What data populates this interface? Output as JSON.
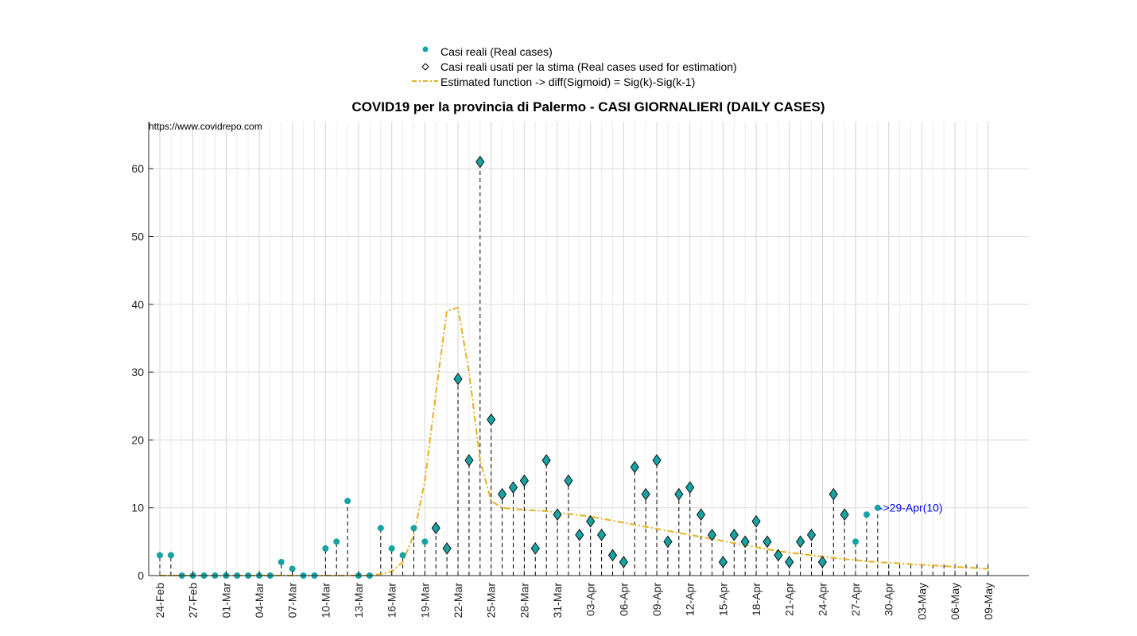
{
  "chart_data": {
    "type": "scatter",
    "title": "COVID19 per la provincia di Palermo - CASI GIORNALIERI (DAILY CASES)",
    "source_text": "https://www.covidrepo.com",
    "xlabel": "",
    "ylabel": "",
    "ylim": [
      0,
      67
    ],
    "yticks": [
      0,
      10,
      20,
      30,
      40,
      50,
      60
    ],
    "start_date": "24-Feb",
    "xticks": [
      "24-Feb",
      "27-Feb",
      "01-Mar",
      "04-Mar",
      "07-Mar",
      "10-Mar",
      "13-Mar",
      "16-Mar",
      "19-Mar",
      "22-Mar",
      "25-Mar",
      "28-Mar",
      "31-Mar",
      "03-Apr",
      "06-Apr",
      "09-Apr",
      "12-Apr",
      "15-Apr",
      "18-Apr",
      "21-Apr",
      "24-Apr",
      "27-Apr",
      "30-Apr",
      "03-May",
      "06-May",
      "09-May"
    ],
    "grid": true,
    "legend_position": "top-center",
    "colors": {
      "real": "#17a3a3",
      "estimated": "#e6b11f",
      "annotation": "#0000ee"
    },
    "series": [
      {
        "name": "Casi reali (Real cases)",
        "type": "scatter",
        "values": [
          3,
          3,
          0,
          0,
          0,
          0,
          0,
          0,
          0,
          0,
          0,
          2,
          1,
          0,
          0,
          4,
          5,
          11,
          0,
          0,
          7,
          4,
          3,
          7,
          5,
          7,
          4,
          29,
          17,
          61,
          23,
          12,
          13,
          14,
          4,
          17,
          9,
          14,
          6,
          8,
          6,
          3,
          2,
          16,
          12,
          17,
          5,
          12,
          13,
          9,
          6,
          2,
          6,
          5,
          8,
          5,
          3,
          2,
          5,
          6,
          2,
          12,
          9,
          5,
          9,
          10
        ]
      },
      {
        "name": "Casi reali usati per la stima (Real cases used for estimation)",
        "type": "scatter",
        "values": [
          null,
          null,
          null,
          null,
          null,
          null,
          null,
          null,
          null,
          null,
          null,
          null,
          null,
          null,
          null,
          null,
          null,
          null,
          null,
          null,
          null,
          null,
          null,
          null,
          null,
          7,
          4,
          29,
          17,
          61,
          23,
          12,
          13,
          14,
          4,
          17,
          9,
          14,
          6,
          8,
          6,
          3,
          2,
          16,
          12,
          17,
          5,
          12,
          13,
          9,
          6,
          2,
          6,
          5,
          8,
          5,
          3,
          2,
          5,
          6,
          2,
          12,
          9,
          null,
          null,
          null
        ]
      },
      {
        "name": "Estimated function -> diff(Sigmoid) = Sig(k)-Sig(k-1)",
        "type": "line",
        "values": [
          0,
          0,
          0,
          0,
          0,
          0,
          0,
          0,
          0,
          0,
          0,
          0,
          0,
          0,
          0,
          0,
          0,
          0,
          0,
          0,
          0.2,
          0.6,
          2,
          6,
          14,
          27,
          39,
          39.5,
          30,
          17,
          11,
          10,
          9.8,
          9.7,
          9.6,
          9.5,
          9.3,
          9.1,
          8.9,
          8.7,
          8.4,
          8.1,
          7.8,
          7.5,
          7.2,
          6.9,
          6.6,
          6.3,
          6,
          5.7,
          5.4,
          5.1,
          4.8,
          4.5,
          4.2,
          3.9,
          3.6,
          3.4,
          3.2,
          3,
          2.8,
          2.6,
          2.4,
          2.3,
          2.1,
          2,
          1.9,
          1.8,
          1.7,
          1.6,
          1.5,
          1.4,
          1.3,
          1.2,
          1.1,
          1
        ]
      }
    ],
    "annotation": {
      "text": "->29-Apr(10)",
      "index": 65,
      "value": 10
    }
  }
}
